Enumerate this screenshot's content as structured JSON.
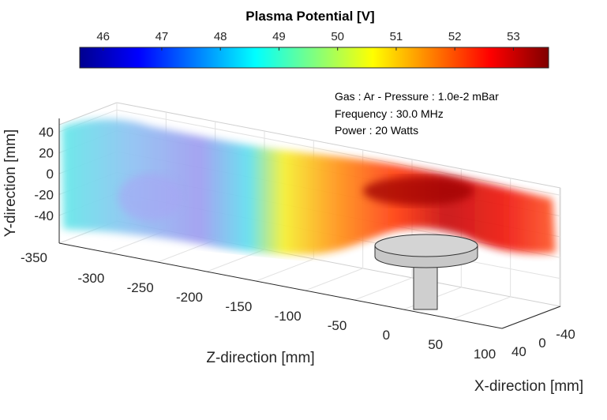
{
  "chart_data": {
    "type": "heatmap",
    "title": "Plasma Potential [V]",
    "colorbar": {
      "ticks": [
        46,
        47,
        48,
        49,
        50,
        51,
        52,
        53
      ],
      "range": [
        45.6,
        53.6
      ],
      "colormap": "jet",
      "placement": "top"
    },
    "annotations": [
      "Gas : Ar - Pressure : 1.0e-2 mBar",
      "Frequency : 30.0 MHz",
      "Power : 20 Watts"
    ],
    "axes": {
      "x": {
        "label": "X-direction [mm]",
        "ticks": [
          -40,
          0,
          40
        ],
        "range": [
          -50,
          50
        ]
      },
      "y": {
        "label": "Y-direction [mm]",
        "ticks": [
          40,
          20,
          0,
          -20,
          -40
        ],
        "range": [
          -50,
          50
        ]
      },
      "z": {
        "label": "Z-direction [mm]",
        "ticks": [
          -350,
          -300,
          -250,
          -200,
          -150,
          -100,
          -50,
          0,
          50,
          100
        ],
        "range": [
          -350,
          100
        ]
      }
    },
    "surface_profile": {
      "z": [
        -350,
        -300,
        -250,
        -200,
        -150,
        -100,
        -50,
        0,
        50,
        100
      ],
      "potential": [
        49.2,
        48.3,
        47.9,
        49.5,
        51.2,
        52.1,
        52.8,
        53.1,
        52.6,
        52.2
      ]
    },
    "grid": true
  }
}
